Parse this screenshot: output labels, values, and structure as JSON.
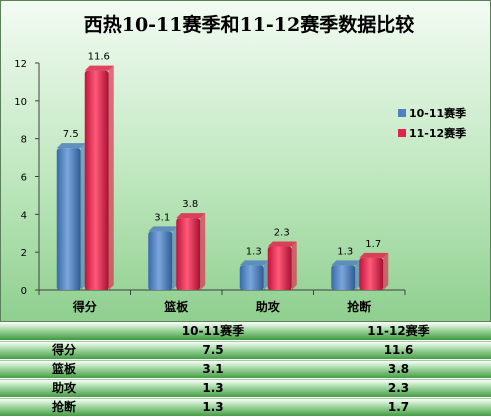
{
  "chart_data": {
    "type": "bar",
    "title": "西热10-11赛季和11-12赛季数据比较",
    "categories": [
      "得分",
      "篮板",
      "助攻",
      "抢断"
    ],
    "series": [
      {
        "name": "10-11赛季",
        "values": [
          7.5,
          3.1,
          1.3,
          1.3
        ],
        "labels": [
          "7.5",
          "3.1",
          "1.3",
          "1.3"
        ],
        "color": "#4f81bd"
      },
      {
        "name": "11-12赛季",
        "values": [
          11.6,
          3.8,
          2.3,
          1.7
        ],
        "labels": [
          "11.6",
          "3.8",
          "2.3",
          "1.7"
        ],
        "color": "#e0234a"
      }
    ],
    "ylim": [
      0,
      12
    ],
    "yticks": [
      "0",
      "2",
      "4",
      "6",
      "8",
      "10",
      "12"
    ],
    "xlabel": "",
    "ylabel": "",
    "legend": "right",
    "grid": false
  },
  "table": {
    "headers": [
      "",
      "10-11赛季",
      "11-12赛季"
    ],
    "rows": [
      [
        "得分",
        "7.5",
        "11.6"
      ],
      [
        "篮板",
        "3.1",
        "3.8"
      ],
      [
        "助攻",
        "1.3",
        "2.3"
      ],
      [
        "抢断",
        "1.3",
        "1.7"
      ]
    ]
  }
}
